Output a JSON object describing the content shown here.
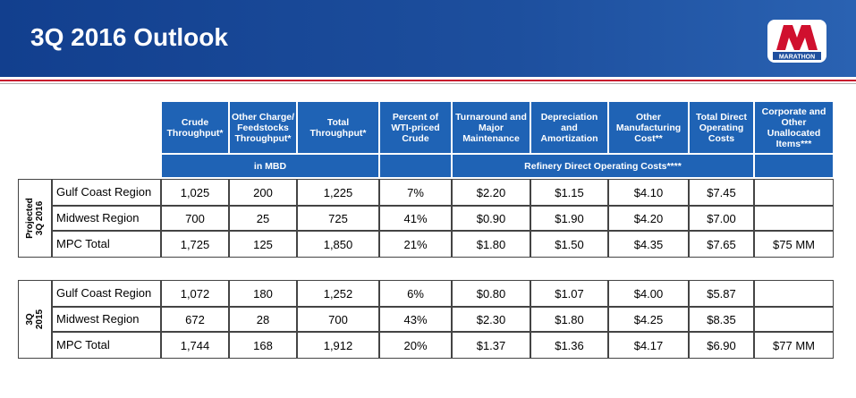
{
  "header": {
    "title": "3Q 2016 Outlook",
    "logo": "MARATHON"
  },
  "table": {
    "columns": [
      "Crude Throughput*",
      "Other Charge/ Feedstocks Throughput*",
      "Total Throughput*",
      "Percent of WTI-priced Crude",
      "Turnaround and Major Maintenance",
      "Depreciation and Amortization",
      "Other Manufacturing Cost**",
      "Total Direct Operating Costs",
      "Corporate and Other Unallocated Items***"
    ],
    "units": {
      "volume": "in MBD",
      "costs": "Refinery Direct Operating Costs****"
    },
    "sections": [
      {
        "label": "Projected 3Q 2016",
        "rows": [
          {
            "region": "Gulf Coast Region",
            "values": [
              "1,025",
              "200",
              "1,225",
              "7%",
              "$2.20",
              "$1.15",
              "$4.10",
              "$7.45"
            ]
          },
          {
            "region": "Midwest Region",
            "values": [
              "700",
              "25",
              "725",
              "41%",
              "$0.90",
              "$1.90",
              "$4.20",
              "$7.00"
            ]
          },
          {
            "region": "MPC Total",
            "values": [
              "1,725",
              "125",
              "1,850",
              "21%",
              "$1.80",
              "$1.50",
              "$4.35",
              "$7.65",
              "$75 MM"
            ]
          }
        ]
      },
      {
        "label": "3Q 2015",
        "rows": [
          {
            "region": "Gulf Coast Region",
            "values": [
              "1,072",
              "180",
              "1,252",
              "6%",
              "$0.80",
              "$1.07",
              "$4.00",
              "$5.87"
            ]
          },
          {
            "region": "Midwest Region",
            "values": [
              "672",
              "28",
              "700",
              "43%",
              "$2.30",
              "$1.80",
              "$4.25",
              "$8.35"
            ]
          },
          {
            "region": "MPC Total",
            "values": [
              "1,744",
              "168",
              "1,912",
              "20%",
              "$1.37",
              "$1.36",
              "$4.17",
              "$6.90",
              "$77 MM"
            ]
          }
        ]
      }
    ]
  }
}
